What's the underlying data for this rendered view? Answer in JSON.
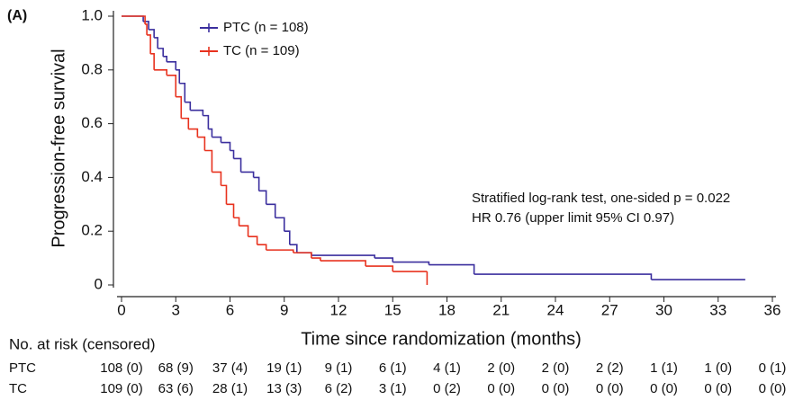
{
  "panel_label": "(A)",
  "chart_data": {
    "type": "step",
    "xlabel": "Time since randomization (months)",
    "ylabel": "Progression-free survival",
    "xlim": [
      0,
      36
    ],
    "xticks": [
      0,
      3,
      6,
      9,
      12,
      15,
      18,
      21,
      24,
      27,
      30,
      33,
      36
    ],
    "ylim": [
      0,
      1
    ],
    "yticks": [
      0,
      0.2,
      0.4,
      0.6,
      0.8,
      {
        "value": 1,
        "label": "1.0"
      }
    ],
    "annotations": [
      "Stratified log-rank test, one-sided p = 0.022",
      "HR 0.76 (upper limit 95% CI 0.97)"
    ],
    "series": [
      {
        "name": "PTC (n = 108)",
        "color": "#3b2f9e",
        "x": [
          0,
          1.2,
          1.5,
          1.8,
          2.0,
          2.3,
          2.5,
          3.0,
          3.2,
          3.5,
          3.8,
          4.5,
          4.8,
          5.0,
          5.5,
          6.0,
          6.2,
          6.6,
          7.3,
          7.6,
          8.0,
          8.5,
          9.0,
          9.3,
          9.7,
          10.5,
          14.0,
          15.0,
          17.0,
          19.5,
          29.3,
          34.5
        ],
        "values": [
          1.0,
          0.98,
          0.95,
          0.92,
          0.88,
          0.85,
          0.83,
          0.8,
          0.75,
          0.68,
          0.65,
          0.63,
          0.58,
          0.55,
          0.53,
          0.5,
          0.47,
          0.42,
          0.4,
          0.35,
          0.3,
          0.25,
          0.2,
          0.15,
          0.12,
          0.11,
          0.1,
          0.085,
          0.075,
          0.04,
          0.02,
          0.02
        ]
      },
      {
        "name": "TC (n = 109)",
        "color": "#e8321e",
        "x": [
          0,
          1.3,
          1.4,
          1.6,
          1.8,
          2.5,
          3.0,
          3.3,
          3.7,
          4.2,
          4.6,
          5.0,
          5.5,
          5.8,
          6.2,
          6.5,
          7.0,
          7.5,
          8.0,
          9.5,
          10.5,
          11.0,
          13.5,
          15.0,
          16.9,
          16.9
        ],
        "values": [
          1.0,
          0.97,
          0.93,
          0.86,
          0.8,
          0.78,
          0.7,
          0.62,
          0.58,
          0.55,
          0.5,
          0.42,
          0.37,
          0.3,
          0.25,
          0.22,
          0.18,
          0.15,
          0.13,
          0.12,
          0.1,
          0.09,
          0.07,
          0.05,
          0.05,
          0.0
        ]
      }
    ]
  },
  "risk_table": {
    "title": "No. at risk (censored)",
    "rows": [
      {
        "label": "PTC",
        "cells": [
          "108 (0)",
          "68 (9)",
          "37 (4)",
          "19 (1)",
          "9 (1)",
          "6 (1)",
          "4 (1)",
          "2 (0)",
          "2 (0)",
          "2 (2)",
          "1 (1)",
          "1 (0)",
          "0 (1)"
        ]
      },
      {
        "label": "TC",
        "cells": [
          "109 (0)",
          "63 (6)",
          "28 (1)",
          "13 (3)",
          "6 (2)",
          "3 (1)",
          "0 (2)",
          "0 (0)",
          "0 (0)",
          "0 (0)",
          "0 (0)",
          "0 (0)",
          "0 (0)"
        ]
      }
    ]
  }
}
